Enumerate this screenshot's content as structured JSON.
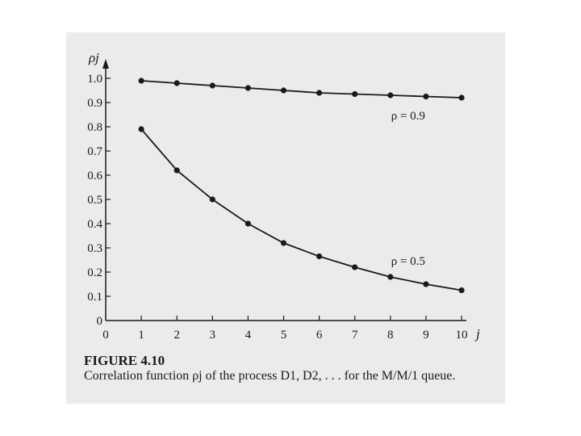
{
  "figure": {
    "caption_title": "FIGURE 4.10",
    "caption_text": "Correlation function ρj of the process D1, D2, . . . for the M/M/1 queue."
  },
  "colors": {
    "ink": "#1a1a1a",
    "paper": "#ecebeb"
  },
  "chart_data": {
    "type": "line",
    "title": "",
    "xlabel": "j",
    "ylabel": "ρj",
    "xlim": [
      0,
      10
    ],
    "ylim": [
      0,
      1.0
    ],
    "x_ticks": [
      "0",
      "1",
      "2",
      "3",
      "4",
      "5",
      "6",
      "7",
      "8",
      "9",
      "10"
    ],
    "y_ticks": [
      "0",
      "0.1",
      "0.2",
      "0.3",
      "0.4",
      "0.5",
      "0.6",
      "0.7",
      "0.8",
      "0.9",
      "1.0"
    ],
    "grid": false,
    "x": [
      1,
      2,
      3,
      4,
      5,
      6,
      7,
      8,
      9,
      10
    ],
    "series": [
      {
        "name": "ρ = 0.9",
        "values": [
          0.99,
          0.98,
          0.97,
          0.96,
          0.95,
          0.94,
          0.935,
          0.93,
          0.925,
          0.92
        ]
      },
      {
        "name": "ρ = 0.5",
        "values": [
          0.79,
          0.62,
          0.5,
          0.4,
          0.32,
          0.265,
          0.22,
          0.18,
          0.15,
          0.125
        ]
      }
    ]
  }
}
